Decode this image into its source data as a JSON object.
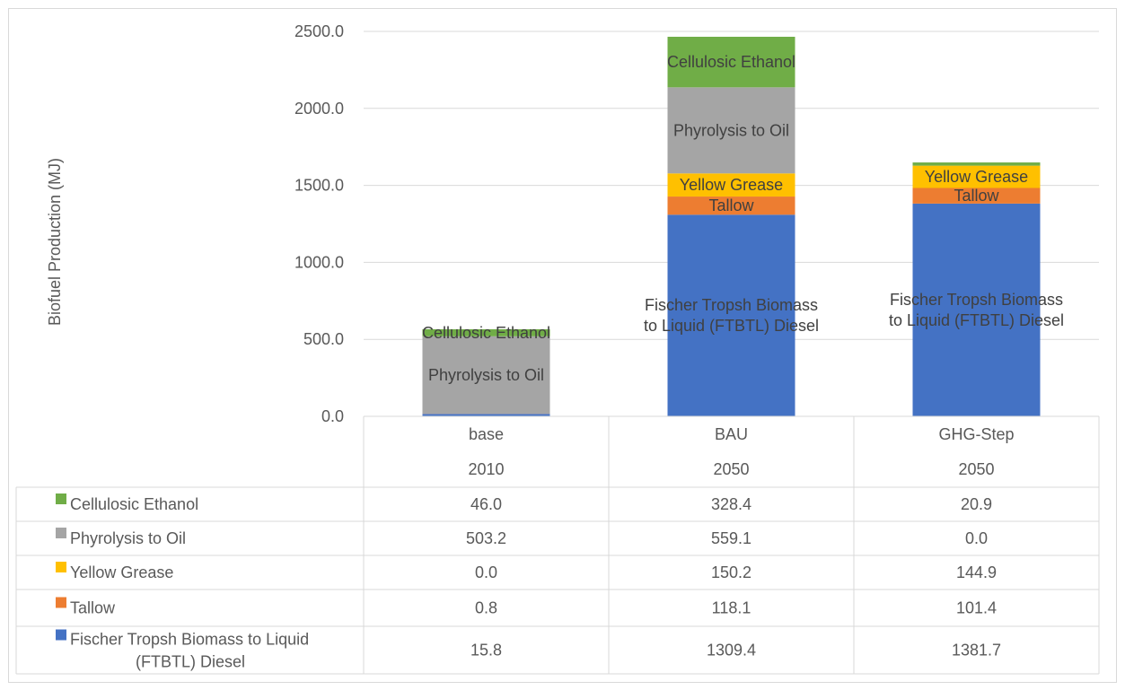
{
  "chart_data": {
    "type": "bar",
    "stacked": true,
    "ylabel": "Biofuel Production (MJ)",
    "ylim": [
      0,
      2500
    ],
    "yticks": [
      "0.0",
      "500.0",
      "1000.0",
      "1500.0",
      "2000.0",
      "2500.0"
    ],
    "categories": [
      {
        "scenario": "base",
        "year": "2010"
      },
      {
        "scenario": "BAU",
        "year": "2050"
      },
      {
        "scenario": "GHG-Step",
        "year": "2050"
      }
    ],
    "series": [
      {
        "name": "Fischer Tropsh Biomass to Liquid (FTBTL) Diesel",
        "short_lines": [
          "Fischer Tropsh Biomass",
          "to Liquid (FTBTL) Diesel"
        ],
        "table_lines": [
          "Fischer Tropsh Biomass to Liquid",
          "(FTBTL) Diesel"
        ],
        "color": "#4472c4",
        "values": [
          15.8,
          1309.4,
          1381.7
        ],
        "labels_on_chart": [
          false,
          true,
          true
        ]
      },
      {
        "name": "Tallow",
        "color": "#ed7d31",
        "values": [
          0.8,
          118.1,
          101.4
        ],
        "labels_on_chart": [
          false,
          true,
          true
        ]
      },
      {
        "name": "Yellow Grease",
        "color": "#ffc000",
        "values": [
          0.0,
          150.2,
          144.9
        ],
        "labels_on_chart": [
          false,
          true,
          true
        ]
      },
      {
        "name": "Phyrolysis to Oil",
        "color": "#a5a5a5",
        "values": [
          503.2,
          559.1,
          0.0
        ],
        "labels_on_chart": [
          true,
          true,
          false
        ]
      },
      {
        "name": "Cellulosic Ethanol",
        "color": "#70ad47",
        "values": [
          46.0,
          328.4,
          20.9
        ],
        "labels_on_chart": [
          true,
          true,
          false
        ]
      }
    ],
    "table_values": [
      {
        "series": "Cellulosic Ethanol",
        "cells": [
          "46.0",
          "328.4",
          "20.9"
        ]
      },
      {
        "series": "Phyrolysis to Oil",
        "cells": [
          "503.2",
          "559.1",
          "0.0"
        ]
      },
      {
        "series": "Yellow Grease",
        "cells": [
          "0.0",
          "150.2",
          "144.9"
        ]
      },
      {
        "series": "Tallow",
        "cells": [
          "0.8",
          "118.1",
          "101.4"
        ]
      },
      {
        "series": "Fischer Tropsh Biomass to Liquid (FTBTL) Diesel",
        "cells": [
          "15.8",
          "1309.4",
          "1381.7"
        ]
      }
    ],
    "grid": true,
    "legend": "data-table"
  }
}
